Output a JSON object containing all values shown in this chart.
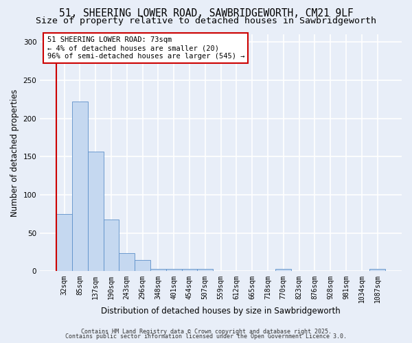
{
  "title_line1": "51, SHEERING LOWER ROAD, SAWBRIDGEWORTH, CM21 9LF",
  "title_line2": "Size of property relative to detached houses in Sawbridgeworth",
  "xlabel": "Distribution of detached houses by size in Sawbridgeworth",
  "ylabel": "Number of detached properties",
  "categories": [
    "32sqm",
    "85sqm",
    "137sqm",
    "190sqm",
    "243sqm",
    "296sqm",
    "348sqm",
    "401sqm",
    "454sqm",
    "507sqm",
    "559sqm",
    "612sqm",
    "665sqm",
    "718sqm",
    "770sqm",
    "823sqm",
    "876sqm",
    "928sqm",
    "981sqm",
    "1034sqm",
    "1087sqm"
  ],
  "values": [
    75,
    222,
    157,
    68,
    24,
    15,
    3,
    3,
    3,
    3,
    0,
    0,
    0,
    0,
    3,
    0,
    0,
    0,
    0,
    0,
    3
  ],
  "bar_color": "#c5d8f0",
  "bar_edge_color": "#5b8fc9",
  "annotation_text": "51 SHEERING LOWER ROAD: 73sqm\n← 4% of detached houses are smaller (20)\n96% of semi-detached houses are larger (545) →",
  "annotation_box_facecolor": "white",
  "annotation_box_edgecolor": "#cc0000",
  "property_bar_index": 0,
  "red_line_color": "#cc0000",
  "ylim": [
    0,
    310
  ],
  "yticks": [
    0,
    50,
    100,
    150,
    200,
    250,
    300
  ],
  "footer_line1": "Contains HM Land Registry data © Crown copyright and database right 2025.",
  "footer_line2": "Contains public sector information licensed under the Open Government Licence 3.0.",
  "background_color": "#e8eef8",
  "grid_color": "white",
  "title_fontsize": 10.5,
  "subtitle_fontsize": 9.5,
  "tick_fontsize": 7,
  "label_fontsize": 8.5,
  "annotation_fontsize": 7.5,
  "footer_fontsize": 6
}
